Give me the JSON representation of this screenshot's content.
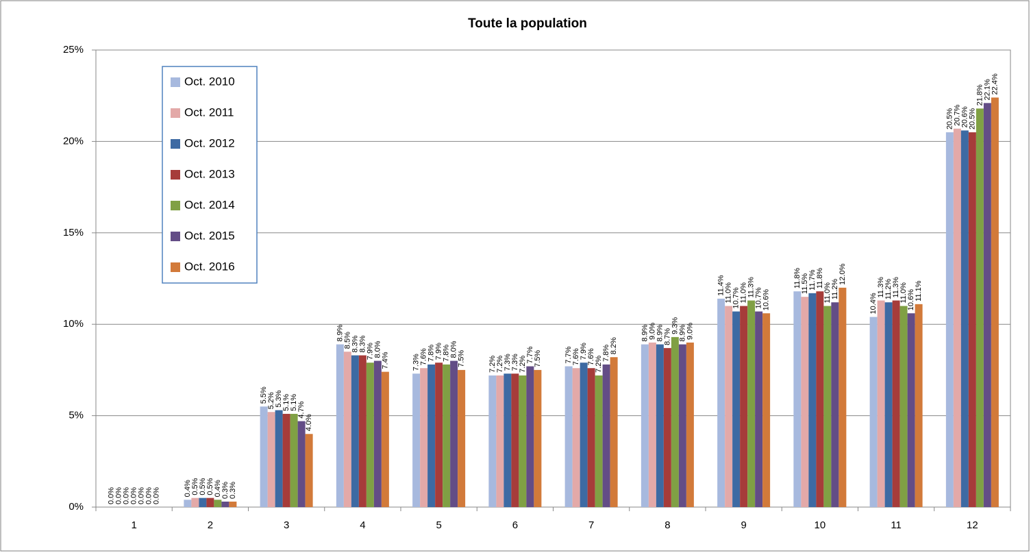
{
  "chart_data": {
    "type": "bar",
    "title": "Toute la population",
    "categories": [
      "1",
      "2",
      "3",
      "4",
      "5",
      "6",
      "7",
      "8",
      "9",
      "10",
      "11",
      "12"
    ],
    "series": [
      {
        "name": "Oct. 2010",
        "color": "#a7b9de",
        "values": [
          0.0,
          0.4,
          5.5,
          8.9,
          7.3,
          7.2,
          7.7,
          8.9,
          11.4,
          11.8,
          10.4,
          20.5
        ],
        "value_labels": [
          "0.0%",
          "0.4%",
          "5.5%",
          "8.9%",
          "7.3%",
          "7.2%",
          "7.7%",
          "8.9%",
          "11.4%",
          "11.8%",
          "10.4%",
          "20.5%"
        ]
      },
      {
        "name": "Oct. 2011",
        "color": "#e3a9a8",
        "values": [
          0.0,
          0.5,
          5.2,
          8.5,
          7.6,
          7.2,
          7.6,
          9.0,
          11.0,
          11.5,
          11.3,
          20.7
        ],
        "value_labels": [
          "0.0%",
          "0.5%",
          "5.2%",
          "8.5%",
          "7.6%",
          "7.2%",
          "7.6%",
          "9.0%",
          "11.0%",
          "11.5%",
          "11.3%",
          "20.7%"
        ]
      },
      {
        "name": "Oct. 2012",
        "color": "#3d6aa3",
        "values": [
          0.0,
          0.5,
          5.3,
          8.3,
          7.8,
          7.3,
          7.9,
          8.9,
          10.7,
          11.7,
          11.2,
          20.6
        ],
        "value_labels": [
          "0.0%",
          "0.5%",
          "5.3%",
          "8.3%",
          "7.8%",
          "7.3%",
          "7.9%",
          "8.9%",
          "10.7%",
          "11.7%",
          "11.2%",
          "20.6%"
        ]
      },
      {
        "name": "Oct. 2013",
        "color": "#a63c3a",
        "values": [
          0.0,
          0.5,
          5.1,
          8.3,
          7.9,
          7.3,
          7.6,
          8.7,
          11.0,
          11.8,
          11.3,
          20.5
        ],
        "value_labels": [
          "0.0%",
          "0.5%",
          "5.1%",
          "8.3%",
          "7.9%",
          "7.3%",
          "7.6%",
          "8.7%",
          "11.0%",
          "11.8%",
          "11.3%",
          "20.5%"
        ]
      },
      {
        "name": "Oct. 2014",
        "color": "#80a044",
        "values": [
          0.0,
          0.4,
          5.1,
          7.9,
          7.8,
          7.2,
          7.2,
          9.3,
          11.3,
          11.0,
          11.0,
          21.8
        ],
        "value_labels": [
          "0.0%",
          "0.4%",
          "5.1%",
          "7.9%",
          "7.8%",
          "7.2%",
          "7.2%",
          "9.3%",
          "11.3%",
          "11.0%",
          "11.0%",
          "21.8%"
        ]
      },
      {
        "name": "Oct. 2015",
        "color": "#634d86",
        "values": [
          0.0,
          0.3,
          4.7,
          8.0,
          8.0,
          7.7,
          7.8,
          8.9,
          10.7,
          11.2,
          10.6,
          22.1
        ],
        "value_labels": [
          "0.0%",
          "0.3%",
          "4.7%",
          "8.0%",
          "8.0%",
          "7.7%",
          "7.8%",
          "8.9%",
          "10.7%",
          "11.2%",
          "10.6%",
          "22.1%"
        ]
      },
      {
        "name": "Oct. 2016",
        "color": "#d27a3a",
        "values": [
          0.0,
          0.3,
          4.0,
          7.4,
          7.5,
          7.5,
          8.2,
          9.0,
          10.6,
          12.0,
          11.1,
          22.4
        ],
        "value_labels": [
          "0.0%",
          "0.3%",
          "4.0%",
          "7.4%",
          "7.5%",
          "7.5%",
          "8.2%",
          "9.0%",
          "10.6%",
          "12.0%",
          "11.1%",
          "22.4%"
        ]
      }
    ],
    "ylim": [
      0,
      25
    ],
    "yticks": [
      {
        "value": 0,
        "label": "0%"
      },
      {
        "value": 5,
        "label": "5%"
      },
      {
        "value": 10,
        "label": "10%"
      },
      {
        "value": 15,
        "label": "15%"
      },
      {
        "value": 20,
        "label": "20%"
      },
      {
        "value": 25,
        "label": "25%"
      }
    ],
    "grid": true,
    "legend": "upper left"
  }
}
